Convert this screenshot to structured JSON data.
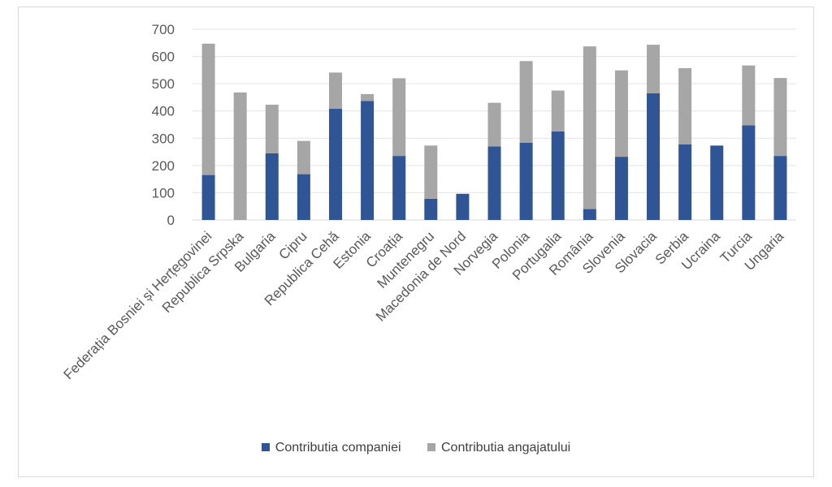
{
  "chart_data": {
    "type": "bar",
    "stacked": true,
    "categories": [
      "Federația Bosniei și Herțegovinei",
      "Republica Srpska",
      "Bulgaria",
      "Cipru",
      "Republica Cehă",
      "Estonia",
      "Croația",
      "Muntenegru",
      "Macedonia de Nord",
      "Norvegia",
      "Polonia",
      "Portugalia",
      "România",
      "Slovenia",
      "Slovacia",
      "Serbia",
      "Ucraina",
      "Turcia",
      "Ungaria"
    ],
    "series": [
      {
        "name": "Contributia companiei",
        "color": "#2f5597",
        "values": [
          165,
          0,
          245,
          168,
          408,
          437,
          235,
          78,
          96,
          270,
          283,
          325,
          40,
          232,
          465,
          277,
          273,
          347,
          235
        ]
      },
      {
        "name": "Contributia angajatului",
        "color": "#a6a6a6",
        "values": [
          482,
          468,
          178,
          122,
          133,
          25,
          285,
          195,
          0,
          160,
          300,
          150,
          597,
          317,
          178,
          280,
          0,
          220,
          286
        ]
      }
    ],
    "ylim": [
      0,
      700
    ],
    "yticks": [
      0,
      100,
      200,
      300,
      400,
      500,
      600,
      700
    ],
    "grid": true,
    "legend_position": "bottom",
    "title": "",
    "xlabel": "",
    "ylabel": ""
  },
  "legend": {
    "items": [
      {
        "label": "Contributia companiei",
        "color": "#2f5597"
      },
      {
        "label": "Contributia angajatului",
        "color": "#a6a6a6"
      }
    ]
  }
}
